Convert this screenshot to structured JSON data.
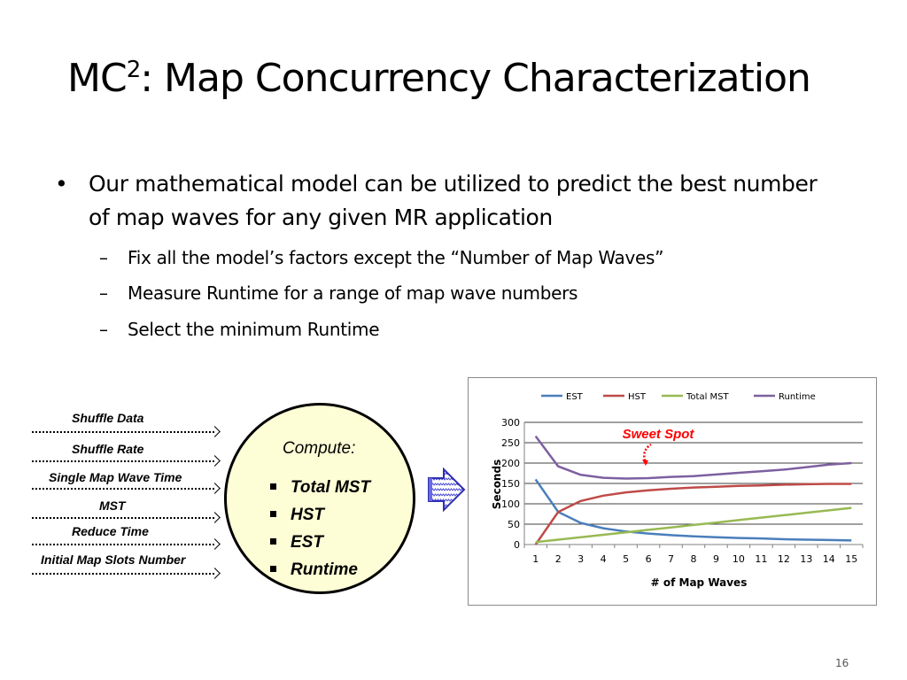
{
  "slide": {
    "title_prefix": "MC",
    "title_superscript": "2",
    "title_rest": ": Map Concurrency Characterization",
    "bullet_symbol": "•",
    "bullet_text": "Our mathematical model can be utilized to predict the best number of map waves for any given MR application",
    "sub_symbol": "–",
    "sub_bullets": [
      "Fix all the model’s factors except the “Number of Map Waves”",
      "Measure Runtime for a range of map wave numbers",
      "Select the minimum Runtime"
    ],
    "page_number": "16"
  },
  "inputs": [
    "Shuffle Data",
    "Shuffle Rate",
    "Single Map Wave Time",
    "MST",
    "Reduce Time",
    "Initial Map Slots Number"
  ],
  "compute": {
    "title": "Compute:",
    "items": [
      "Total MST",
      "HST",
      "EST",
      "Runtime"
    ],
    "fill_color": "#fefed6"
  },
  "chart_data": {
    "type": "line",
    "x": [
      1,
      2,
      3,
      4,
      5,
      6,
      7,
      8,
      9,
      10,
      11,
      12,
      13,
      14,
      15
    ],
    "xlabel": "# of Map Waves",
    "ylabel": "Seconds",
    "ylim": [
      0,
      300
    ],
    "yticks": [
      0,
      50,
      100,
      150,
      200,
      250,
      300
    ],
    "grid": true,
    "legend_position": "top",
    "annotation": "Sweet Spot",
    "annotation_color": "#ff0000",
    "series": [
      {
        "name": "EST",
        "color": "#4a7ebb",
        "values": [
          160,
          80,
          53,
          40,
          32,
          27,
          23,
          20,
          18,
          16,
          15,
          13,
          12,
          11,
          10
        ]
      },
      {
        "name": "HST",
        "color": "#be4b48",
        "values": [
          0,
          80,
          107,
          120,
          128,
          133,
          137,
          140,
          142,
          144,
          145,
          147,
          148,
          149,
          149
        ]
      },
      {
        "name": "Total MST",
        "color": "#98b954",
        "values": [
          6,
          12,
          18,
          24,
          30,
          36,
          42,
          48,
          54,
          60,
          66,
          72,
          78,
          84,
          90
        ]
      },
      {
        "name": "Runtime",
        "color": "#7d60a0",
        "values": [
          266,
          192,
          171,
          164,
          162,
          163,
          166,
          168,
          172,
          176,
          180,
          184,
          190,
          196,
          200
        ]
      }
    ]
  }
}
